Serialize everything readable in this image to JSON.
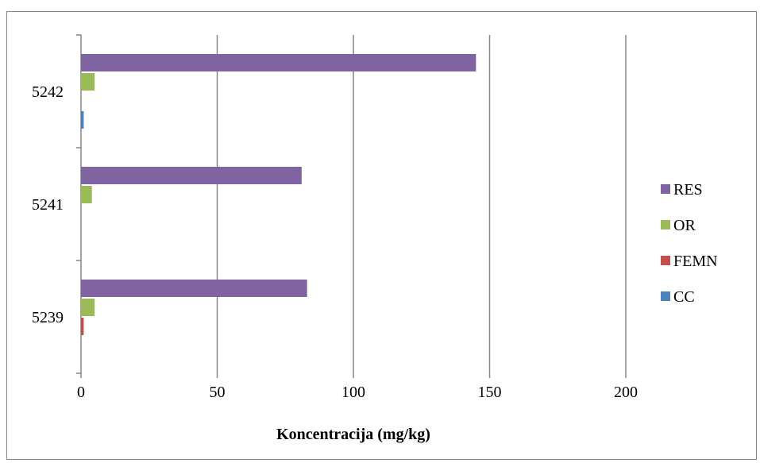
{
  "chart_data": {
    "type": "bar",
    "orientation": "horizontal",
    "categories": [
      "5239",
      "5241",
      "5242"
    ],
    "series": [
      {
        "name": "CC",
        "color": "#4F81BD",
        "values": [
          0,
          0,
          1
        ]
      },
      {
        "name": "FEMN",
        "color": "#C0504D",
        "values": [
          1,
          0,
          0
        ]
      },
      {
        "name": "OR",
        "color": "#9BBB59",
        "values": [
          5,
          4,
          5
        ]
      },
      {
        "name": "RES",
        "color": "#8064A2",
        "values": [
          83,
          81,
          145
        ]
      }
    ],
    "xlabel": "Koncentracija (mg/kg)",
    "ylabel": "",
    "xlim": [
      0,
      200
    ],
    "xticks": [
      "0",
      "50",
      "100",
      "150",
      "200"
    ],
    "grid": "vertical",
    "legend_position": "right",
    "legend_order": [
      "RES",
      "OR",
      "FEMN",
      "CC"
    ]
  }
}
